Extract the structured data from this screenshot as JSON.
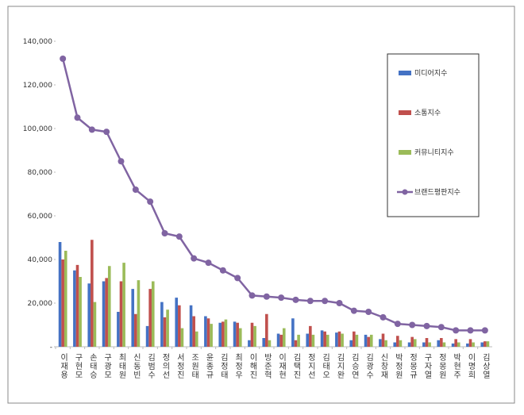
{
  "chart_data": {
    "type": "bar-line",
    "categories": [
      "이재용",
      "구현모",
      "손태승",
      "구광모",
      "최태원",
      "신동빈",
      "김범수",
      "정의선",
      "서정진",
      "조원태",
      "윤종규",
      "김정태",
      "최정우",
      "이해진",
      "방준혁",
      "이재현",
      "김택진",
      "정지선",
      "김태오",
      "김지완",
      "김승연",
      "김광수",
      "신창재",
      "박정원",
      "정몽규",
      "구자열",
      "정몽원",
      "박현주",
      "이명희",
      "김상열"
    ],
    "series": [
      {
        "name": "미디어지수",
        "type": "bar",
        "color": "#4472c4",
        "values": [
          48000,
          35000,
          29000,
          30000,
          16000,
          26500,
          9500,
          20500,
          22500,
          19000,
          14000,
          11000,
          11500,
          3000,
          4000,
          6000,
          13000,
          6000,
          7500,
          6500,
          3000,
          5500,
          3500,
          2000,
          2000,
          2000,
          3000,
          1500,
          1500,
          2000
        ]
      },
      {
        "name": "소통지수",
        "type": "bar",
        "color": "#c0504d",
        "values": [
          40000,
          37500,
          49000,
          31500,
          30000,
          15000,
          26500,
          13500,
          19000,
          14000,
          13000,
          11500,
          11000,
          11000,
          15000,
          5500,
          3000,
          9500,
          7000,
          7000,
          7000,
          4500,
          6000,
          5000,
          4500,
          4000,
          4000,
          3500,
          3500,
          2500
        ]
      },
      {
        "name": "커뮤니티지수",
        "type": "bar",
        "color": "#9bbb59",
        "values": [
          44000,
          32000,
          20500,
          37000,
          38500,
          30500,
          30000,
          17000,
          8500,
          7000,
          10500,
          12500,
          8500,
          9500,
          3000,
          8500,
          5500,
          5500,
          5500,
          6000,
          5500,
          5500,
          3000,
          3000,
          3500,
          2000,
          2000,
          2000,
          2000,
          2500
        ]
      },
      {
        "name": "브랜드평판지수",
        "type": "line",
        "color": "#8064a2",
        "values": [
          132000,
          105000,
          99500,
          98500,
          85000,
          72000,
          66500,
          52000,
          50500,
          40500,
          38500,
          35000,
          31500,
          23500,
          23000,
          22500,
          21500,
          21000,
          21000,
          20000,
          16500,
          16000,
          13500,
          10500,
          10000,
          9500,
          9000,
          7500,
          7500,
          7500
        ]
      }
    ],
    "ylim": [
      0,
      140000
    ],
    "yticks": [
      {
        "value": 0,
        "label": "-"
      },
      {
        "value": 20000,
        "label": "20,000"
      },
      {
        "value": 40000,
        "label": "40,000"
      },
      {
        "value": 60000,
        "label": "60,000"
      },
      {
        "value": 80000,
        "label": "80,000"
      },
      {
        "value": 100000,
        "label": "100,000"
      },
      {
        "value": 120000,
        "label": "120,000"
      },
      {
        "value": 140000,
        "label": "140,000"
      }
    ],
    "legend": "right"
  }
}
